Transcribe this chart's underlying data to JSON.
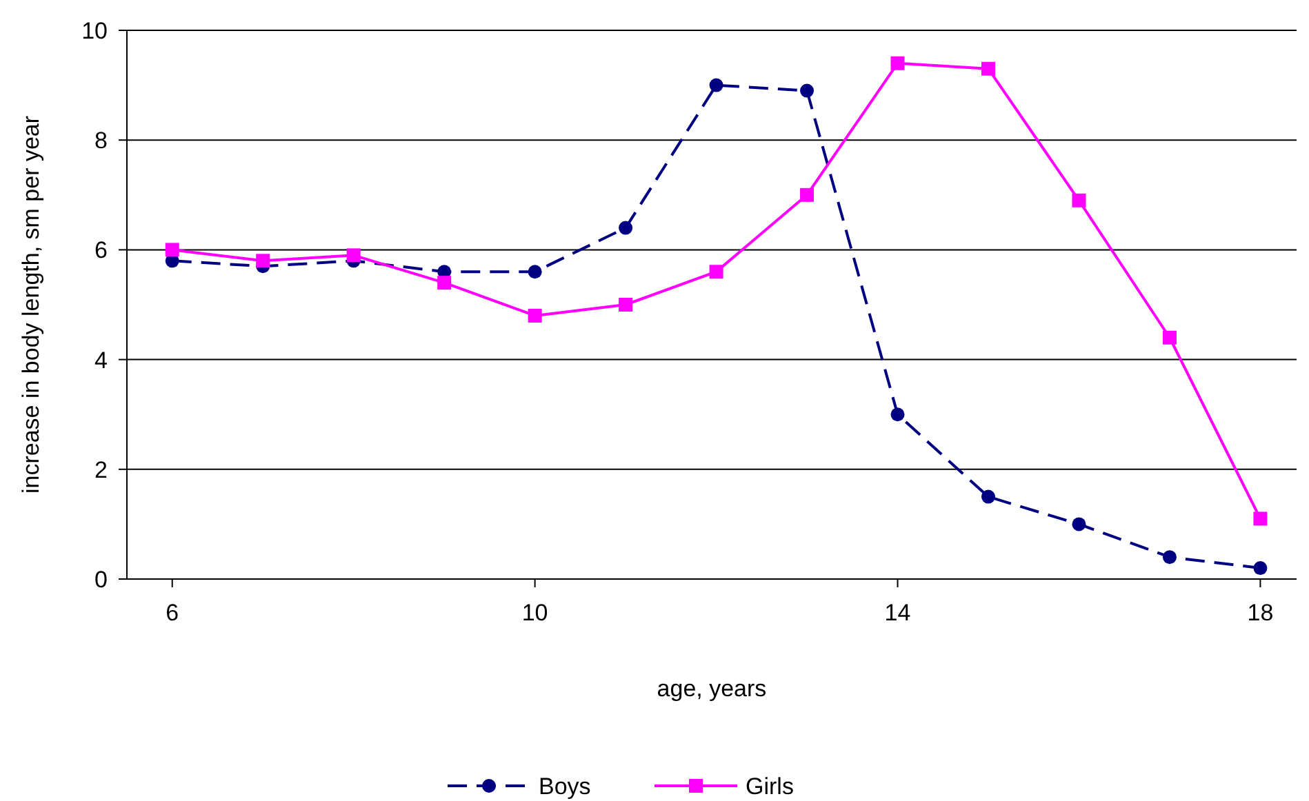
{
  "chart_data": {
    "type": "line",
    "xlabel": "age, years",
    "ylabel": "increase in body length, sm per year",
    "x": [
      6,
      7,
      8,
      9,
      10,
      11,
      12,
      13,
      14,
      15,
      16,
      17,
      18
    ],
    "xlim": [
      5.5,
      18.4
    ],
    "xticks": [
      6,
      10,
      14,
      18
    ],
    "ylim": [
      0,
      10
    ],
    "yticks": [
      0,
      2,
      4,
      6,
      8,
      10
    ],
    "grid": "y",
    "legend": "bottom",
    "series": [
      {
        "name": "Boys",
        "color": "#000080",
        "marker": "circle",
        "line_style": "dashed",
        "values": [
          5.8,
          5.7,
          5.8,
          5.6,
          5.6,
          6.4,
          9.0,
          8.9,
          3.0,
          1.5,
          1.0,
          0.4,
          0.2
        ]
      },
      {
        "name": "Girls",
        "color": "#ff00ff",
        "marker": "square",
        "line_style": "solid",
        "values": [
          6.0,
          5.8,
          5.9,
          5.4,
          4.8,
          5.0,
          5.6,
          7.0,
          9.4,
          9.3,
          6.9,
          4.4,
          1.1
        ]
      }
    ]
  }
}
